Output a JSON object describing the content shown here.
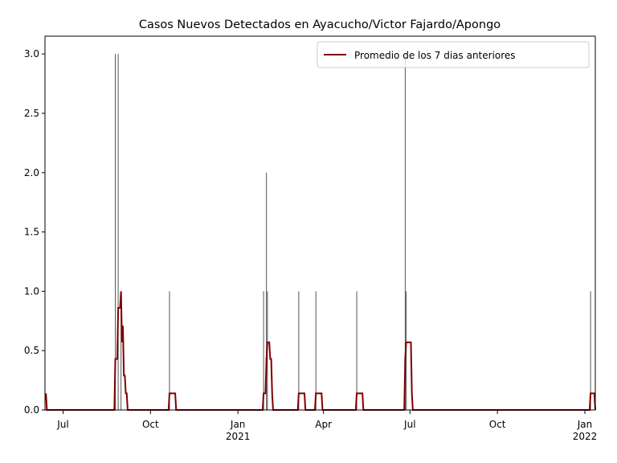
{
  "chart_data": {
    "type": "bar",
    "title": "Casos Nuevos Detectados en Ayacucho/Victor Fajardo/Apongo",
    "xlim": [
      "2020-06-12",
      "2022-01-12"
    ],
    "xticks": [
      {
        "value": "2020-07-01",
        "label": "Jul"
      },
      {
        "value": "2020-10-01",
        "label": "Oct"
      },
      {
        "value": "2021-01-01",
        "label": "Jan\n2021"
      },
      {
        "value": "2021-04-01",
        "label": "Apr"
      },
      {
        "value": "2021-07-01",
        "label": "Jul"
      },
      {
        "value": "2021-10-01",
        "label": "Oct"
      },
      {
        "value": "2022-01-01",
        "label": "Jan\n2022"
      }
    ],
    "ylim": [
      0,
      3.15
    ],
    "yticks": [
      {
        "value": 0,
        "label": "0.0"
      },
      0.5,
      {
        "value": 1,
        "label": "1.0"
      },
      1.5,
      {
        "value": 2,
        "label": "2.0"
      },
      2.5,
      {
        "value": 3,
        "label": "3.0"
      }
    ],
    "legend": "upper right",
    "series": [
      {
        "type": "bar",
        "color": "#555555",
        "x": [
          "2020-08-25",
          "2020-08-28",
          "2020-08-31",
          "2020-10-21",
          "2021-01-28",
          "2021-01-31",
          "2021-02-01",
          "2021-03-06",
          "2021-03-24",
          "2021-05-06",
          "2021-06-26",
          "2021-06-27",
          "2022-01-07"
        ],
        "values": [
          3,
          3,
          1,
          1,
          1,
          2,
          1,
          1,
          1,
          1,
          3,
          1,
          1
        ]
      },
      {
        "type": "line",
        "name": "Promedio de los 7 dias anteriores",
        "color": "#800000",
        "x": [
          "2020-06-13",
          "2020-06-14",
          "2020-08-24",
          "2020-08-25",
          "2020-08-27",
          "2020-08-28",
          "2020-08-30",
          "2020-08-31",
          "2020-09-01",
          "2020-09-02",
          "2020-09-03",
          "2020-09-04",
          "2020-09-05",
          "2020-09-06",
          "2020-09-07",
          "2020-10-20",
          "2020-10-21",
          "2020-10-27",
          "2020-10-28",
          "2021-01-27",
          "2021-01-28",
          "2021-01-30",
          "2021-01-31",
          "2021-02-01",
          "2021-02-03",
          "2021-02-04",
          "2021-02-05",
          "2021-02-06",
          "2021-02-07",
          "2021-03-05",
          "2021-03-06",
          "2021-03-12",
          "2021-03-13",
          "2021-03-23",
          "2021-03-24",
          "2021-03-30",
          "2021-03-31",
          "2021-05-05",
          "2021-05-06",
          "2021-05-12",
          "2021-05-13",
          "2021-06-25",
          "2021-06-26",
          "2021-06-27",
          "2021-07-02",
          "2021-07-03",
          "2021-07-04",
          "2022-01-06",
          "2022-01-07",
          "2022-01-11",
          "2022-01-12"
        ],
        "values": [
          0.14,
          0,
          0,
          0.43,
          0.43,
          0.86,
          0.86,
          1.0,
          0.57,
          0.71,
          0.29,
          0.29,
          0.14,
          0.14,
          0,
          0,
          0.14,
          0.14,
          0,
          0,
          0.14,
          0.14,
          0.43,
          0.57,
          0.57,
          0.43,
          0.43,
          0.14,
          0,
          0,
          0.14,
          0.14,
          0,
          0,
          0.14,
          0.14,
          0,
          0,
          0.14,
          0.14,
          0,
          0,
          0.43,
          0.57,
          0.57,
          0.14,
          0,
          0,
          0.14,
          0.14,
          0
        ]
      }
    ]
  }
}
